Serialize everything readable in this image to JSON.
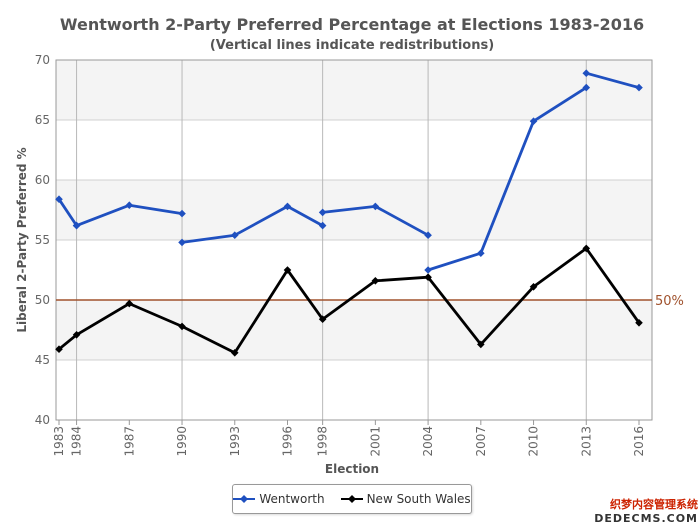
{
  "chart_data": {
    "type": "line",
    "title": "Wentworth 2-Party Preferred Percentage at Elections 1983-2016",
    "subtitle": "(Vertical lines indicate redistributions)",
    "xlabel": "Election",
    "ylabel": "Liberal 2-Party Preferred %",
    "categories": [
      "1983",
      "1984",
      "1987",
      "1990",
      "1993",
      "1996",
      "1998",
      "2001",
      "2004",
      "2007",
      "2010",
      "2013",
      "2016"
    ],
    "x_years": [
      1983,
      1984,
      1987,
      1990,
      1993,
      1996,
      1998,
      2001,
      2004,
      2007,
      2010,
      2013,
      2016
    ],
    "ylim": [
      40,
      70
    ],
    "yticks": [
      40,
      45,
      50,
      55,
      60,
      65,
      70
    ],
    "grid": true,
    "legend_position": "bottom",
    "redistribution_years": [
      1984,
      1990,
      1998,
      2004,
      2013
    ],
    "reference_line": {
      "value": 50,
      "label": "50%",
      "color": "#a0522d"
    },
    "series": [
      {
        "name": "Wentworth",
        "color": "#1f50c0",
        "segments": [
          [
            [
              1983,
              58.4
            ],
            [
              1984,
              56.2
            ]
          ],
          [
            [
              1984,
              56.2
            ],
            [
              1987,
              57.9
            ],
            [
              1990,
              57.2
            ]
          ],
          [
            [
              1990,
              54.8
            ],
            [
              1993,
              55.4
            ],
            [
              1996,
              57.8
            ],
            [
              1998,
              56.2
            ]
          ],
          [
            [
              1998,
              57.3
            ],
            [
              2001,
              57.8
            ],
            [
              2004,
              55.4
            ]
          ],
          [
            [
              2004,
              52.5
            ],
            [
              2007,
              53.9
            ],
            [
              2010,
              64.9
            ],
            [
              2013,
              67.7
            ]
          ],
          [
            [
              2013,
              68.9
            ],
            [
              2016,
              67.7
            ]
          ]
        ]
      },
      {
        "name": "New South Wales",
        "color": "#000000",
        "segments": [
          [
            [
              1983,
              45.9
            ],
            [
              1984,
              47.1
            ],
            [
              1987,
              49.7
            ],
            [
              1990,
              47.8
            ],
            [
              1993,
              45.6
            ],
            [
              1996,
              52.5
            ],
            [
              1998,
              48.4
            ],
            [
              2001,
              51.6
            ],
            [
              2004,
              51.9
            ],
            [
              2007,
              46.3
            ],
            [
              2010,
              51.1
            ],
            [
              2013,
              54.3
            ],
            [
              2016,
              48.1
            ]
          ]
        ]
      }
    ]
  },
  "watermark": {
    "line1": "织梦内容管理系统",
    "line2": "DEDECMS.COM"
  }
}
